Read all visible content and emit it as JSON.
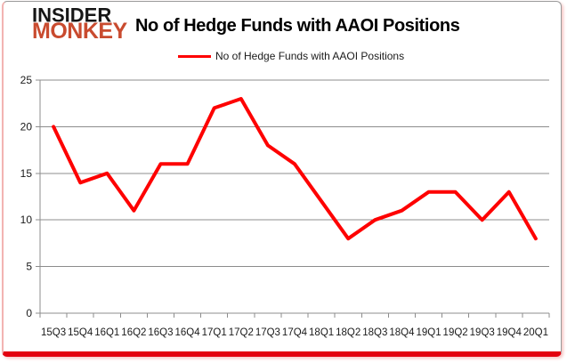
{
  "logo": {
    "line1": "INSIDER",
    "line2": "MONKEY",
    "brand_color": "#c94b2f"
  },
  "header": {
    "title": "No of Hedge Funds with AAOI Positions"
  },
  "legend": {
    "label": "No of Hedge Funds with AAOI Positions"
  },
  "colors": {
    "series_line": "#fe0000",
    "axis_gray": "#8c8c8c",
    "frame_bottom_red": "#e3000f",
    "frame_pink": "#f2b4b2"
  },
  "chart_data": {
    "type": "line",
    "title": "No of Hedge Funds with AAOI Positions",
    "categories": [
      "15Q3",
      "15Q4",
      "16Q1",
      "16Q2",
      "16Q3",
      "16Q4",
      "17Q1",
      "17Q2",
      "17Q3",
      "17Q4",
      "18Q1",
      "18Q2",
      "18Q3",
      "18Q4",
      "19Q1",
      "19Q2",
      "19Q3",
      "19Q4",
      "20Q1"
    ],
    "series": [
      {
        "name": "No of Hedge Funds with AAOI Positions",
        "values": [
          20,
          14,
          15,
          11,
          16,
          16,
          22,
          23,
          18,
          16,
          12,
          8,
          10,
          11,
          13,
          13,
          10,
          13,
          8
        ]
      }
    ],
    "xlabel": "",
    "ylabel": "",
    "ylim": [
      0,
      25
    ],
    "yticks": [
      0,
      5,
      10,
      15,
      20,
      25
    ],
    "grid": true,
    "legend_position": "top",
    "line_color": "#fe0000",
    "line_width": 4,
    "axis_color": "#8c8c8c"
  }
}
